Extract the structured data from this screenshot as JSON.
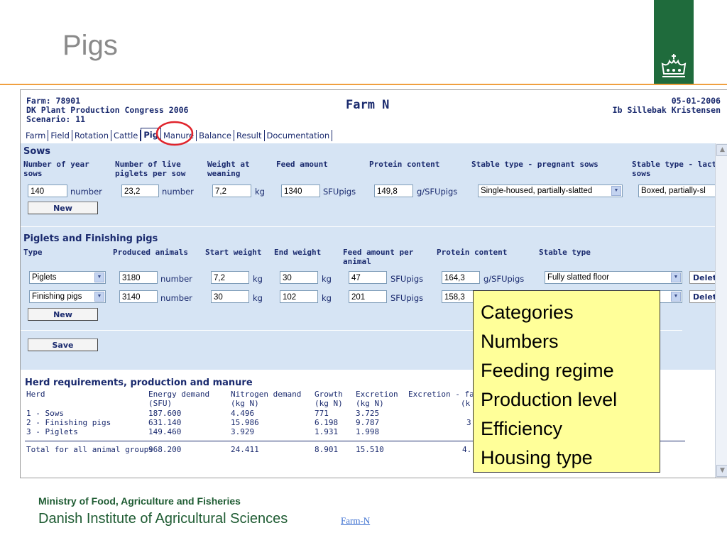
{
  "slide": {
    "title": "Pigs",
    "footer_ministry": "Ministry of Food, Agriculture and Fisheries",
    "footer_institute": "Danish Institute of Agricultural Sciences",
    "footer_link": "Farm-N"
  },
  "header": {
    "farm": "Farm: 78901",
    "event": "DK Plant Production Congress 2006",
    "scenario": "Scenario: 11",
    "app_title": "Farm N",
    "date": "05-01-2006",
    "user": "Ib Sillebak Kristensen"
  },
  "tabs": [
    "Farm",
    "Field",
    "Rotation",
    "Cattle",
    "Pig",
    "Manure",
    "Balance",
    "Result",
    "Documentation"
  ],
  "active_tab": "Pig",
  "sows": {
    "title": "Sows",
    "headers": {
      "col1": "Number of year sows",
      "col2": "Number of live piglets per sow",
      "col3": "Weight at weaning",
      "col4": "Feed amount",
      "col5": "Protein content",
      "col6": "Stable type - pregnant sows",
      "col7": "Stable type - lacta sows"
    },
    "row": {
      "year_sows": "140",
      "unit1": "number",
      "piglets": "23,2",
      "unit2": "number",
      "weaning_weight": "7,2",
      "unit3": "kg",
      "feed": "1340",
      "unit4": "SFUpigs",
      "protein": "149,8",
      "unit5": "g/SFUpigs",
      "stable_pregnant": "Single-housed, partially-slatted",
      "stable_lacta": "Boxed, partially-sl"
    },
    "new_label": "New"
  },
  "piglets": {
    "title": "Piglets and Finishing pigs",
    "headers": {
      "type": "Type",
      "produced": "Produced animals",
      "start_weight": "Start weight",
      "end_weight": "End weight",
      "feed": "Feed amount per animal",
      "protein": "Protein content",
      "stable": "Stable type"
    },
    "rows": [
      {
        "type": "Piglets",
        "produced": "3180",
        "u1": "number",
        "start": "7,2",
        "u2": "kg",
        "end": "30",
        "u3": "kg",
        "feed": "47",
        "u4": "SFUpigs",
        "protein": "164,3",
        "u5": "g/SFUpigs",
        "stable": "Fully slatted floor",
        "delete": "Delet"
      },
      {
        "type": "Finishing pigs",
        "produced": "3140",
        "u1": "number",
        "start": "30",
        "u2": "kg",
        "end": "102",
        "u3": "kg",
        "feed": "201",
        "u4": "SFUpigs",
        "protein": "158,3",
        "delete": "Delet"
      }
    ],
    "new_label": "New"
  },
  "save_label": "Save",
  "herd": {
    "title": "Herd requirements, production and manure",
    "headers": {
      "herd": "Herd",
      "energy": "Energy demand",
      "energy_unit": "(SFU)",
      "nitrogen": "Nitrogen demand",
      "nitrogen_unit": "(kg N)",
      "growth": "Growth",
      "growth_unit": "(kg N)",
      "excretion": "Excretion",
      "excretion_unit": "(kg N)",
      "excretion_fac": "Excretion - fa",
      "excretion_fac_unit": "(k"
    },
    "rows": [
      {
        "herd": "1 - Sows",
        "energy": "187.600",
        "nitrogen": "4.496",
        "growth": "771",
        "excretion": "3.725"
      },
      {
        "herd": "2 - Finishing pigs",
        "energy": "631.140",
        "nitrogen": "15.986",
        "growth": "6.198",
        "excretion": "9.787",
        "fac": "3"
      },
      {
        "herd": "3 - Piglets",
        "energy": "149.460",
        "nitrogen": "3.929",
        "growth": "1.931",
        "excretion": "1.998"
      }
    ],
    "total": {
      "label": "Total for all animal groups",
      "energy": "968.200",
      "nitrogen": "24.411",
      "growth": "8.901",
      "excretion": "15.510",
      "fac": "4."
    }
  },
  "overlay_items": [
    "Categories",
    "Numbers",
    "Feeding regime",
    "Production level",
    "Efficiency",
    "Housing type"
  ],
  "colors": {
    "brand_green": "#1f6b3c",
    "accent_orange": "#f0a040",
    "highlight_red": "#e0242c",
    "form_bg": "#d6e4f4",
    "note_yellow": "#ffff99"
  }
}
